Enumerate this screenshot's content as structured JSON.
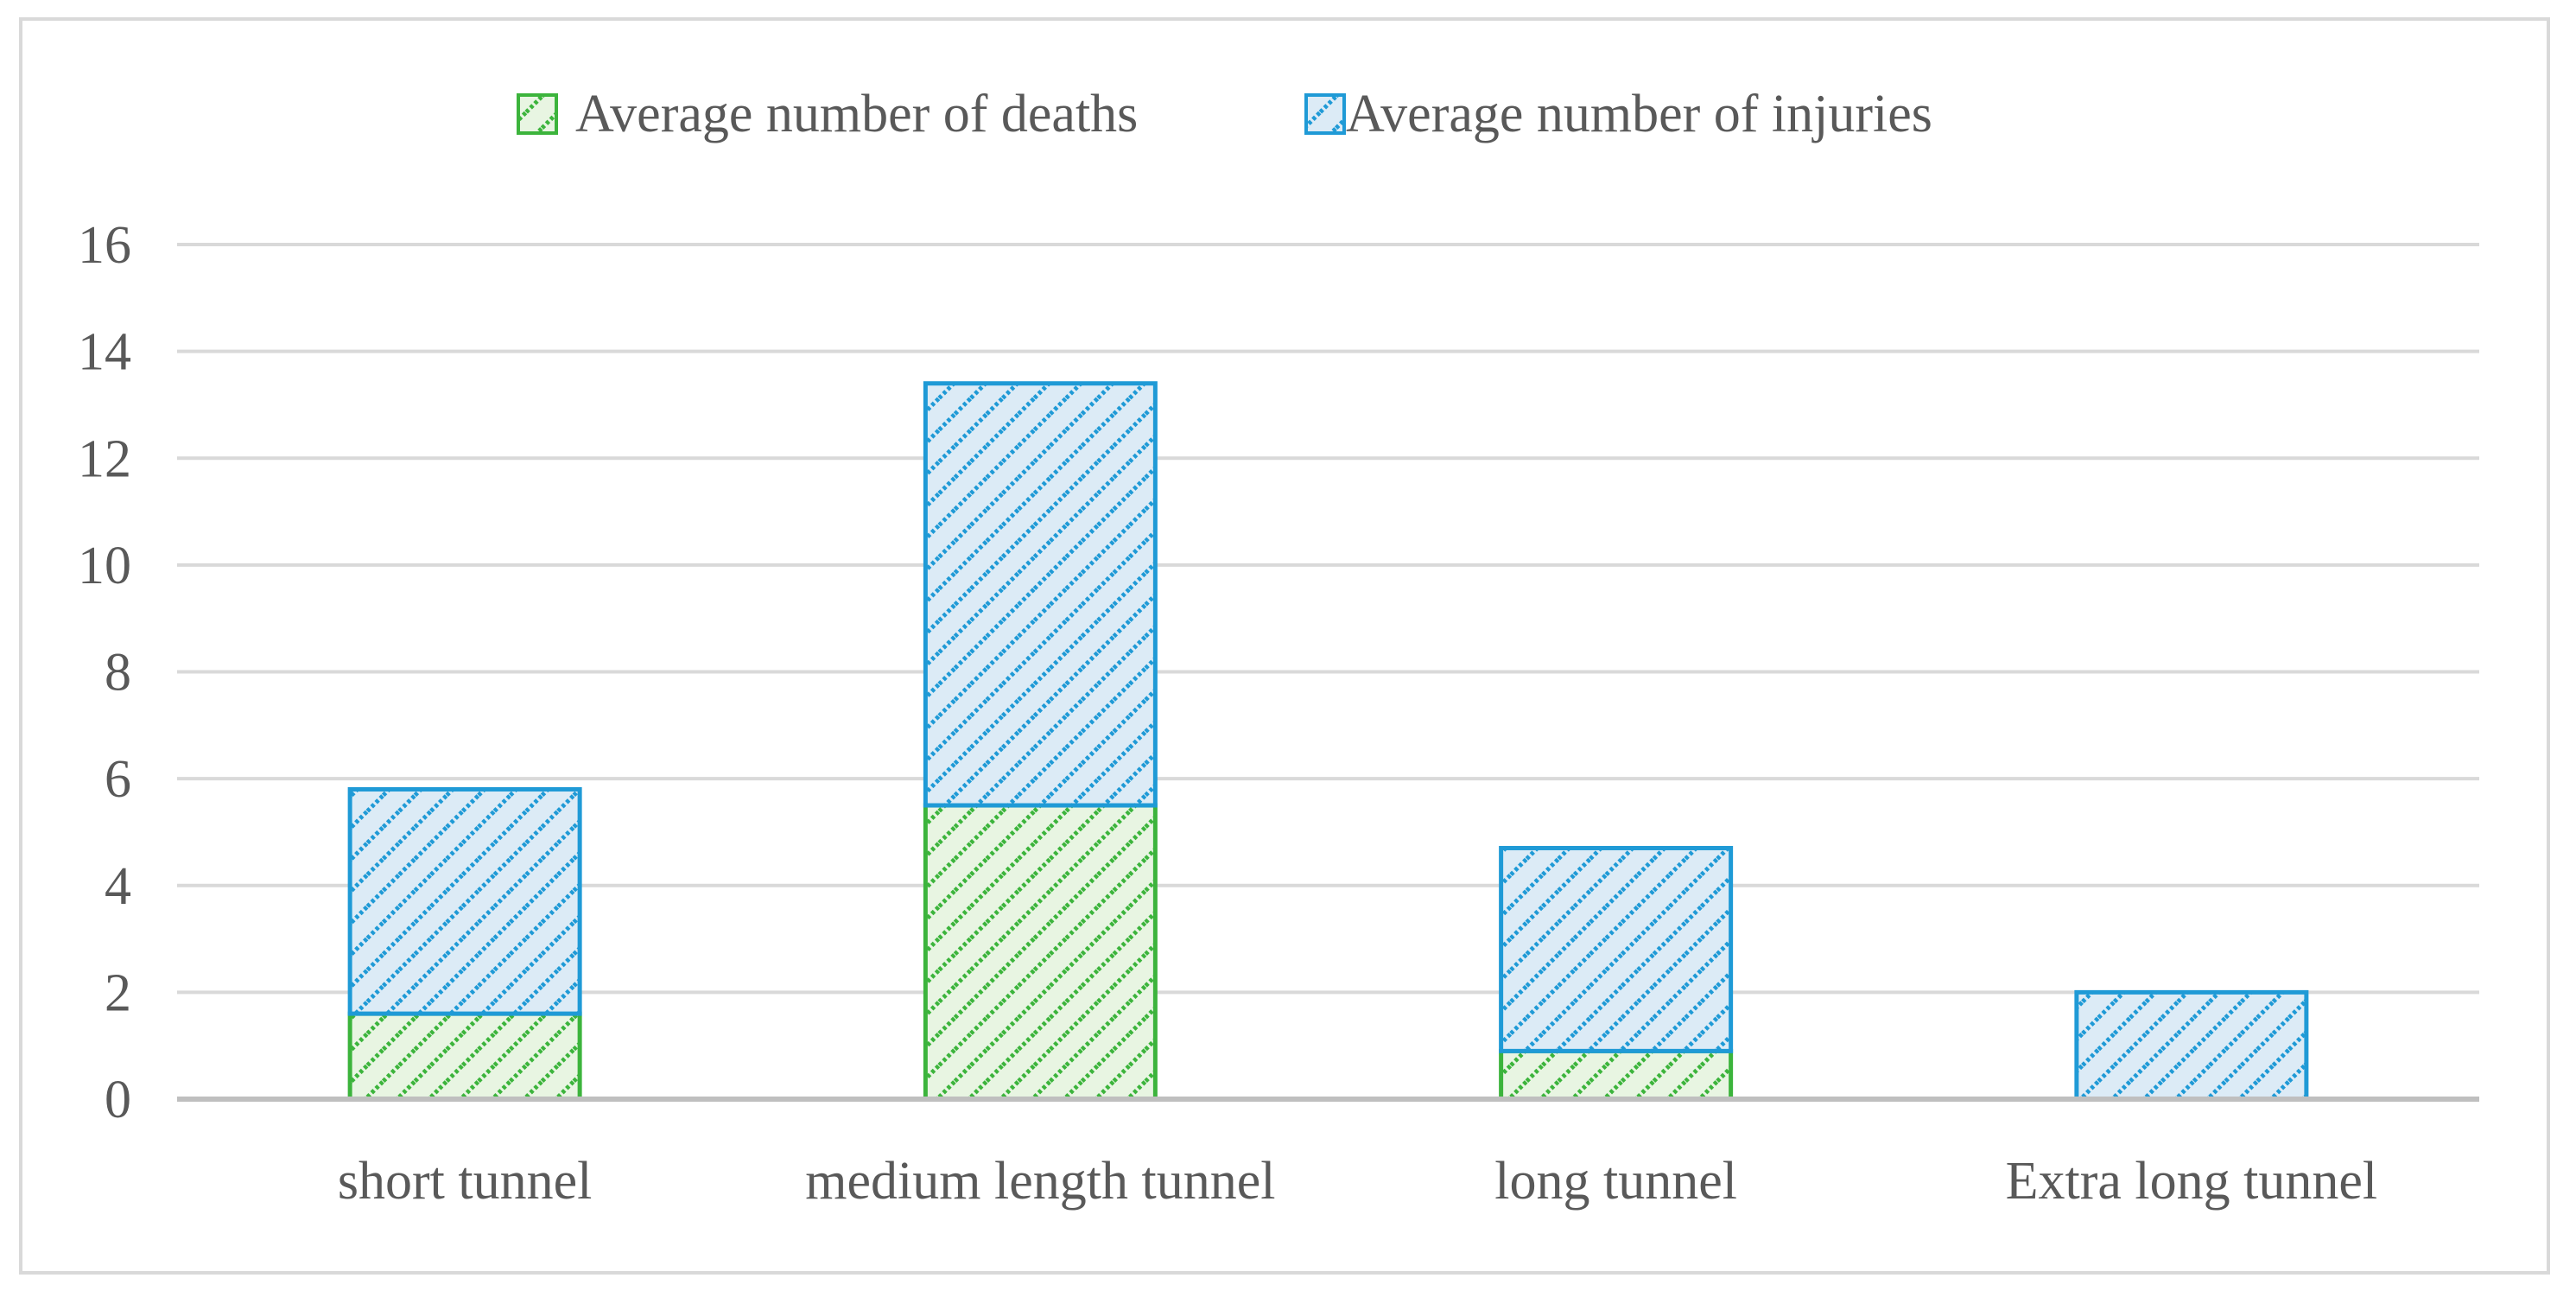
{
  "chart_data": {
    "type": "bar",
    "stacked": true,
    "title": "",
    "xlabel": "",
    "ylabel": "",
    "ylim": [
      0,
      16
    ],
    "yticks": [
      0,
      2,
      4,
      6,
      8,
      10,
      12,
      14,
      16
    ],
    "grid": true,
    "legend_position": "top",
    "categories": [
      "short tunnel",
      "medium length tunnel",
      "long tunnel",
      "Extra long tunnel"
    ],
    "series": [
      {
        "name": "Average number of deaths",
        "values": [
          1.6,
          5.5,
          0.9,
          0.0
        ],
        "color": "#3cb43c",
        "fill": "#e8f5e2"
      },
      {
        "name": "Average number of injuries",
        "values": [
          4.2,
          7.9,
          3.8,
          2.0
        ],
        "color": "#1f9ad6",
        "fill": "#dcebf6"
      }
    ]
  }
}
